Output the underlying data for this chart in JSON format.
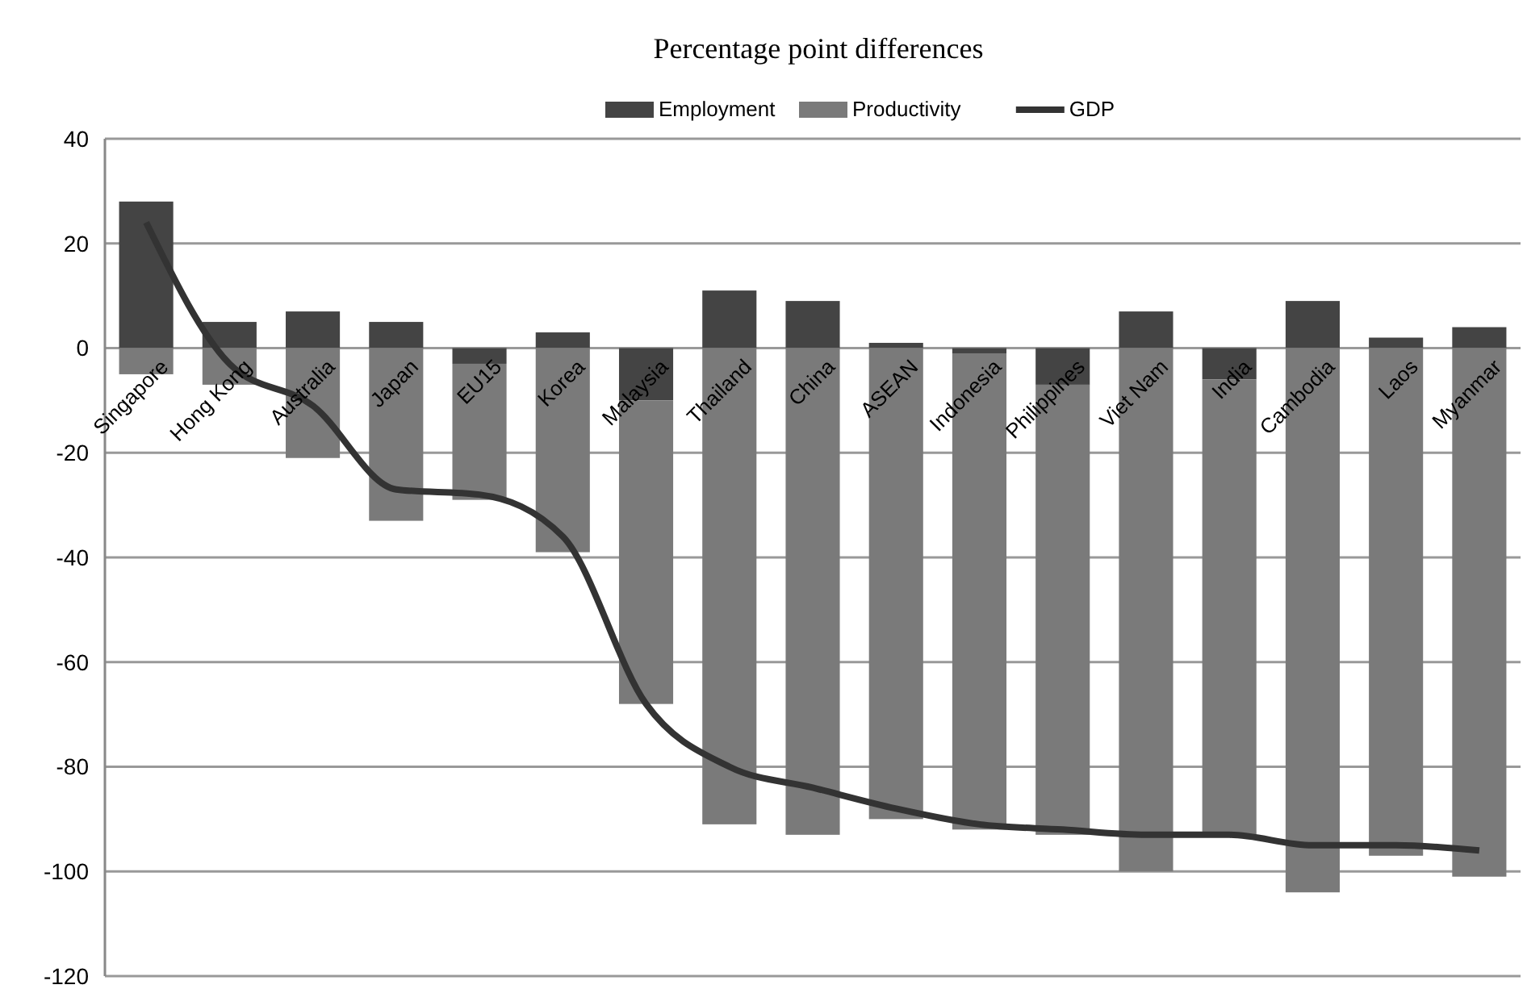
{
  "chart_data": {
    "type": "bar",
    "title": "Percentage point differences",
    "stacked": true,
    "categories": [
      "Singapore",
      "Hong Kong",
      "Australia",
      "Japan",
      "EU15",
      "Korea",
      "Malaysia",
      "Thailand",
      "China",
      "ASEAN",
      "Indonesia",
      "Philippines",
      "Viet Nam",
      "India",
      "Cambodia",
      "Laos",
      "Myanmar"
    ],
    "series": [
      {
        "name": "Employment",
        "color": "#444444",
        "values": [
          28,
          5,
          7,
          5,
          -3,
          3,
          -10,
          11,
          9,
          1,
          -1,
          -7,
          7,
          -6,
          9,
          2,
          4
        ]
      },
      {
        "name": "Productivity",
        "color": "#7a7a7a",
        "values": [
          -5,
          -7,
          -21,
          -33,
          -26,
          -39,
          -58,
          -91,
          -93,
          -90,
          -91,
          -86,
          -100,
          -87,
          -104,
          -97,
          -101
        ]
      },
      {
        "name": "GDP",
        "type": "line",
        "color": "#333333",
        "values": [
          24,
          -3,
          -11,
          -27,
          -28,
          -36,
          -68,
          -80,
          -84,
          -88,
          -91,
          -92,
          -93,
          -93,
          -95,
          -95,
          -96
        ]
      }
    ],
    "ylim": [
      -120,
      40
    ],
    "yticks": [
      -120,
      -100,
      -80,
      -60,
      -40,
      -20,
      0,
      20,
      40
    ],
    "grid": "y",
    "legend": "top",
    "marker": "none",
    "line_style": "solid"
  }
}
